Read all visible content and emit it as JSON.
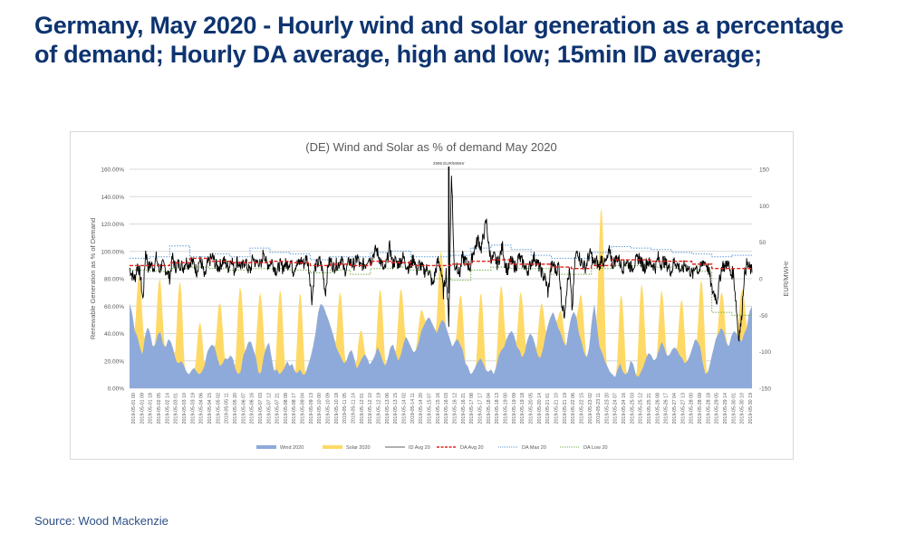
{
  "page": {
    "title": "Germany, May 2020 - Hourly wind and solar generation as a percentage of demand; Hourly DA average, high and low; 15min ID average;",
    "source": "Source: Wood Mackenzie"
  },
  "colors": {
    "title": "#0e3470",
    "wind": "#8eaadb",
    "solar": "#ffd966",
    "id_avg": "#000000",
    "da_avg": "#e0241c",
    "da_max": "#5b9bd5",
    "da_low": "#70ad47",
    "grid": "#d9d9d9"
  },
  "chart_data": {
    "type": "area",
    "title": "(DE) Wind and Solar as % of demand May 2020",
    "ylabel": "Renewable Generation as % of Demand",
    "y2label": "EUR/MWHr",
    "ylim": [
      0,
      1.6
    ],
    "y2lim": [
      -150,
      150
    ],
    "yticks": [
      "0.00%",
      "20.00%",
      "40.00%",
      "60.00%",
      "80.00%",
      "100.00%",
      "120.00%",
      "140.00%",
      "160.00%"
    ],
    "y2ticks": [
      "-150",
      "-100",
      "-50",
      "0",
      "50",
      "100",
      "150"
    ],
    "grid": true,
    "legend_position": "bottom",
    "annotation": "2995 EUR/MWHr",
    "annotation_x_day": 15.9,
    "xticks": [
      "2019-05-01 00",
      "2019-05-01 09",
      "2019-05-01 18",
      "2019-05-02 05",
      "2019-05-02 14",
      "2019-05-03 01",
      "2019-05-03 10",
      "2019-05-03 19",
      "2019-05-04 06",
      "2019-05-04 15",
      "2019-05-05 02",
      "2019-05-05 11",
      "2019-05-05 20",
      "2019-05-06 07",
      "2019-05-06 16",
      "2019-05-07 03",
      "2019-05-07 12",
      "2019-05-07 21",
      "2019-05-08 08",
      "2019-05-08 17",
      "2019-05-09 04",
      "2019-05-09 13",
      "2019-05-10 00",
      "2019-05-10 09",
      "2019-05-10 18",
      "2019-05-11 05",
      "2019-05-11 14",
      "2019-05-12 01",
      "2019-05-12 10",
      "2019-05-12 19",
      "2019-05-13 06",
      "2019-05-13 15",
      "2019-05-14 02",
      "2019-05-14 11",
      "2019-05-14 20",
      "2019-05-15 07",
      "2019-05-15 16",
      "2019-05-16 03",
      "2019-05-16 12",
      "2019-05-16 21",
      "2019-05-17 08",
      "2019-05-17 17",
      "2019-05-18 04",
      "2019-05-18 13",
      "2019-05-19 00",
      "2019-05-19 09",
      "2019-05-19 18",
      "2019-05-20 05",
      "2019-05-20 14",
      "2019-05-21 01",
      "2019-05-21 10",
      "2019-05-21 19",
      "2019-05-22 06",
      "2019-05-22 15",
      "2019-05-23 02",
      "2019-05-23 11",
      "2019-05-23 20",
      "2019-05-24 07",
      "2019-05-24 16",
      "2019-05-25 03",
      "2019-05-25 12",
      "2019-05-25 21",
      "2019-05-26 08",
      "2019-05-26 17",
      "2019-05-27 04",
      "2019-05-27 13",
      "2019-05-28 00",
      "2019-05-28 09",
      "2019-05-28 18",
      "2019-05-29 05",
      "2019-05-29 14",
      "2019-05-30 01",
      "2019-05-30 10",
      "2019-05-30 19"
    ],
    "days": 31,
    "legend": [
      "Wind 2020",
      "Solar 2020",
      "ID Avg 20",
      "DA Avg 20",
      "DA Max 20",
      "DA Low 20"
    ],
    "series": [
      {
        "name": "Wind 2020",
        "axis": "left",
        "note": "share of demand, sampled every 6 hours (day 0 to 31)",
        "values": [
          0.62,
          0.55,
          0.42,
          0.38,
          0.3,
          0.24,
          0.38,
          0.45,
          0.4,
          0.3,
          0.32,
          0.4,
          0.41,
          0.32,
          0.3,
          0.36,
          0.34,
          0.28,
          0.2,
          0.18,
          0.2,
          0.17,
          0.12,
          0.1,
          0.13,
          0.15,
          0.12,
          0.1,
          0.12,
          0.16,
          0.26,
          0.3,
          0.32,
          0.3,
          0.22,
          0.16,
          0.18,
          0.22,
          0.21,
          0.24,
          0.22,
          0.14,
          0.1,
          0.12,
          0.24,
          0.28,
          0.34,
          0.34,
          0.28,
          0.22,
          0.1,
          0.12,
          0.24,
          0.3,
          0.34,
          0.22,
          0.12,
          0.14,
          0.1,
          0.12,
          0.15,
          0.2,
          0.16,
          0.18,
          0.12,
          0.11,
          0.14,
          0.1,
          0.1,
          0.16,
          0.22,
          0.3,
          0.4,
          0.55,
          0.62,
          0.6,
          0.55,
          0.5,
          0.44,
          0.38,
          0.3,
          0.26,
          0.22,
          0.18,
          0.2,
          0.26,
          0.28,
          0.22,
          0.14,
          0.18,
          0.22,
          0.25,
          0.22,
          0.17,
          0.2,
          0.24,
          0.3,
          0.26,
          0.2,
          0.16,
          0.22,
          0.3,
          0.32,
          0.26,
          0.2,
          0.24,
          0.32,
          0.38,
          0.34,
          0.3,
          0.26,
          0.28,
          0.34,
          0.42,
          0.46,
          0.5,
          0.52,
          0.48,
          0.44,
          0.4,
          0.46,
          0.5,
          0.48,
          0.42,
          0.36,
          0.3,
          0.34,
          0.36,
          0.32,
          0.28,
          0.18,
          0.16,
          0.1,
          0.12,
          0.16,
          0.2,
          0.22,
          0.18,
          0.13,
          0.12,
          0.14,
          0.1,
          0.16,
          0.24,
          0.28,
          0.3,
          0.36,
          0.4,
          0.42,
          0.38,
          0.3,
          0.28,
          0.22,
          0.26,
          0.35,
          0.4,
          0.38,
          0.32,
          0.24,
          0.22,
          0.28,
          0.38,
          0.46,
          0.52,
          0.56,
          0.5,
          0.44,
          0.4,
          0.34,
          0.3,
          0.42,
          0.52,
          0.56,
          0.52,
          0.4,
          0.34,
          0.26,
          0.22,
          0.3,
          0.5,
          0.62,
          0.45,
          0.3,
          0.26,
          0.2,
          0.16,
          0.12,
          0.1,
          0.08,
          0.14,
          0.18,
          0.12,
          0.1,
          0.12,
          0.2,
          0.18,
          0.1,
          0.08,
          0.12,
          0.16,
          0.22,
          0.26,
          0.24,
          0.2,
          0.22,
          0.28,
          0.34,
          0.3,
          0.24,
          0.24,
          0.28,
          0.3,
          0.28,
          0.24,
          0.22,
          0.18,
          0.2,
          0.24,
          0.3,
          0.36,
          0.34,
          0.3,
          0.18,
          0.1,
          0.12,
          0.2,
          0.28,
          0.36,
          0.4,
          0.44,
          0.42,
          0.34,
          0.3,
          0.38,
          0.42,
          0.4,
          0.36,
          0.34,
          0.4,
          0.44,
          0.56,
          0.6
        ]
      },
      {
        "name": "Solar 2020",
        "axis": "left",
        "note": "daily midday peak of wind+solar stack (share of demand), days 1-31",
        "peaks": [
          0.82,
          0.8,
          0.78,
          0.48,
          0.62,
          0.74,
          0.7,
          0.72,
          0.7,
          0.6,
          0.7,
          0.42,
          0.72,
          0.72,
          0.56,
          0.64,
          0.68,
          0.7,
          0.75,
          0.7,
          0.62,
          0.56,
          0.68,
          0.7,
          0.68,
          0.76,
          0.72,
          0.65,
          0.78,
          0.7,
          0.72
        ],
        "midday_peaks_notable": {
          "day_16": 1.0,
          "day_24": 1.32
        }
      },
      {
        "name": "ID Avg 20",
        "axis": "right",
        "note": "15-min intraday average EUR/MWh, sampled every 6 hours",
        "values": [
          15,
          5,
          0,
          20,
          5,
          -30,
          40,
          15,
          20,
          15,
          30,
          10,
          20,
          15,
          10,
          0,
          30,
          15,
          20,
          20,
          15,
          25,
          20,
          25,
          20,
          10,
          25,
          20,
          0,
          20,
          25,
          30,
          20,
          15,
          20,
          25,
          20,
          15,
          30,
          10,
          25,
          20,
          15,
          25,
          15,
          10,
          30,
          20,
          25,
          15,
          40,
          20,
          20,
          25,
          15,
          10,
          20,
          15,
          20,
          20,
          25,
          10,
          20,
          20,
          25,
          20,
          30,
          10,
          -30,
          15,
          20,
          25,
          10,
          -20,
          20,
          25,
          15,
          20,
          20,
          30,
          10,
          15,
          25,
          20,
          20,
          30,
          15,
          20,
          20,
          30,
          25,
          35,
          40,
          30,
          20,
          10,
          25,
          45,
          20,
          25,
          20,
          25,
          30,
          20,
          15,
          20,
          30,
          10,
          20,
          15,
          10,
          15,
          5,
          -10,
          10,
          25,
          15,
          -20,
          10,
          -60,
          150,
          15,
          20,
          5,
          30,
          25,
          20,
          15,
          35,
          45,
          55,
          40,
          60,
          80,
          40,
          25,
          30,
          20,
          30,
          45,
          20,
          10,
          25,
          20,
          15,
          30,
          25,
          20,
          10,
          15,
          25,
          30,
          20,
          15,
          5,
          0,
          -20,
          15,
          20,
          10,
          20,
          -30,
          -50,
          -10,
          10,
          -45,
          25,
          40,
          25,
          20,
          15,
          30,
          35,
          20,
          25,
          15,
          30,
          20,
          25,
          40,
          20,
          25,
          30,
          20,
          15,
          25,
          20,
          15,
          20,
          25,
          30,
          20,
          15,
          25,
          20,
          20,
          15,
          30,
          20,
          25,
          20,
          15,
          10,
          25,
          20,
          15,
          10,
          20,
          15,
          10,
          5,
          20,
          10,
          15,
          25,
          20,
          10,
          -15,
          -20,
          -30,
          0,
          20,
          15,
          25,
          5,
          10,
          -30,
          -80,
          -60,
          0,
          20,
          15,
          10
        ]
      },
      {
        "name": "DA Avg 20",
        "axis": "right",
        "note": "daily DA average steps, EUR/MWh, days 1-31",
        "values": [
          18,
          18,
          22,
          28,
          24,
          22,
          22,
          24,
          22,
          18,
          20,
          18,
          24,
          22,
          18,
          18,
          20,
          24,
          26,
          20,
          20,
          16,
          14,
          18,
          26,
          26,
          24,
          24,
          20,
          14,
          14
        ]
      },
      {
        "name": "DA Max 20",
        "axis": "right",
        "note": "daily DA max steps, EUR/MWh",
        "values": [
          28,
          30,
          45,
          30,
          34,
          30,
          42,
          36,
          34,
          26,
          30,
          30,
          36,
          38,
          30,
          30,
          32,
          42,
          46,
          40,
          32,
          28,
          28,
          36,
          44,
          42,
          40,
          36,
          34,
          30,
          32
        ]
      },
      {
        "name": "DA Low 20",
        "axis": "right",
        "note": "daily DA low steps, EUR/MWh",
        "values": [
          12,
          10,
          14,
          16,
          14,
          12,
          14,
          14,
          12,
          8,
          12,
          6,
          14,
          16,
          12,
          0,
          -2,
          12,
          16,
          14,
          14,
          6,
          6,
          14,
          18,
          18,
          16,
          14,
          10,
          -46,
          -50
        ]
      }
    ]
  }
}
